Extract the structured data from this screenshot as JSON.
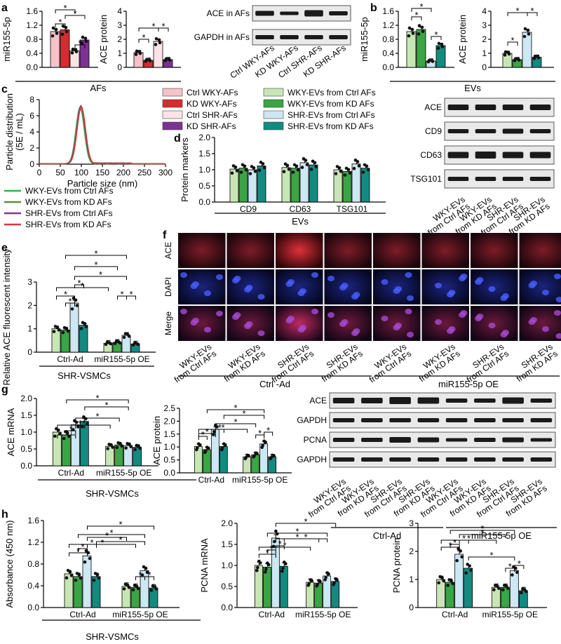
{
  "colors": {
    "ctrl_wky": "#f4c2c8",
    "kd_wky": "#d62b30",
    "ctrl_shr": "#fbe3e6",
    "kd_shr": "#7c3291",
    "wky_ctrl_evs": "#c8e6b5",
    "wky_kd_evs": "#3aa545",
    "shr_ctrl_evs": "#cde7f3",
    "shr_kd_evs": "#138a80",
    "curve_wky_ctrl": "#2fb24a",
    "curve_wky_kd": "#5c8f3e",
    "curve_shr_ctrl": "#7a3a8f",
    "curve_shr_kd": "#d43a3a",
    "ace_red": "#b0121b",
    "dapi_blue": "#2233b8"
  },
  "panels": {
    "a": "a",
    "b": "b",
    "c": "c",
    "d": "d",
    "e": "e",
    "f": "f",
    "g": "g",
    "h": "h"
  },
  "star": "*",
  "legend_af": [
    "Ctrl WKY-AFs",
    "KD WKY-AFs",
    "Ctrl SHR-AFs",
    "KD SHR-AFs"
  ],
  "legend_ev": [
    "WKY-EVs from Ctrl AFs",
    "WKY-EVs from KD AFs",
    "SHR-EVs from Ctrl AFs",
    "SHR-EVs from KD AFs"
  ],
  "blot_a": {
    "rows": [
      "ACE in AFs",
      "GAPDH in AFs"
    ],
    "lanes": [
      "Ctrl WKY-AFs",
      "KD WKY-AFs",
      "Ctrl SHR-AFs",
      "KD SHR-AFs"
    ]
  },
  "blot_d": {
    "rows": [
      "ACE",
      "CD9",
      "CD63",
      "TSG101"
    ],
    "lanes": [
      "WKY-EVs from Ctrl AFs",
      "WKY-EVs from KD AFs",
      "SHR-EVs from Ctrl AFs",
      "SHR-EVs from KD AFs"
    ]
  },
  "blot_g": {
    "rows": [
      "ACE",
      "GAPDH",
      "PCNA",
      "GAPDH"
    ],
    "lanes": [
      "WKY-EVs from Ctrl AFs",
      "WKY-EVs from KD AFs",
      "SHR-EVs from Ctrl AFs",
      "SHR-EVs from KD AFs",
      "WKY-EVs from Ctrl AFs",
      "WKY-EVs from KD AFs",
      "SHR-EVs from Ctrl AFs",
      "SHR-EVs from KD AFs"
    ],
    "groups": [
      "Ctrl-Ad",
      "miR155-5p OE"
    ]
  },
  "micro_f": {
    "rows": [
      "ACE",
      "DAPI",
      "Merge"
    ],
    "columns": [
      "WKY-EVs from Ctrl AFs",
      "WKY-EVs from KD AFs",
      "SHR-EVs from Ctrl AFs",
      "SHR-EVs from KD AFs",
      "WKY-EVs from Ctrl AFs",
      "WKY-EVs from KD AFs",
      "SHR-EVs from Ctrl AFs",
      "SHR-EVs from KD AFs"
    ],
    "groups": [
      "Ctrl -Ad",
      "miR155-5p OE"
    ]
  },
  "chart_data": [
    {
      "id": "a1",
      "type": "bar",
      "ylabel": "miR155-5p",
      "ylim": [
        0,
        1.6
      ],
      "yticks": [
        "0.0",
        "0.4",
        "0.8",
        "1.2",
        "1.6"
      ],
      "values": [
        1.02,
        1.07,
        0.47,
        0.78
      ],
      "footer": "AFs",
      "colorset": "af"
    },
    {
      "id": "a2",
      "type": "bar",
      "ylabel": "ACE protein",
      "ylim": [
        0,
        4
      ],
      "yticks": [
        "0",
        "1",
        "2",
        "3",
        "4"
      ],
      "values": [
        1.05,
        0.5,
        1.85,
        0.55
      ],
      "colorset": "af"
    },
    {
      "id": "b1",
      "type": "bar",
      "ylabel": "miR155-5p",
      "ylim": [
        0,
        1.6
      ],
      "yticks": [
        "0.0",
        "0.4",
        "0.8",
        "1.2",
        "1.6"
      ],
      "values": [
        1.02,
        1.08,
        0.18,
        0.62
      ],
      "footer": "EVs",
      "colorset": "ev"
    },
    {
      "id": "b2",
      "type": "bar",
      "ylabel": "ACE protein",
      "ylim": [
        0,
        4
      ],
      "yticks": [
        "0",
        "1",
        "2",
        "3",
        "4"
      ],
      "values": [
        1.0,
        0.55,
        2.5,
        0.72
      ],
      "colorset": "ev"
    },
    {
      "id": "c",
      "type": "line",
      "xlabel": "Particle size (nm)",
      "ylabel": "Particle distribution (5E / mL)",
      "xlim": [
        0,
        300
      ],
      "ylim": [
        0,
        8
      ],
      "xticks": [
        "0",
        "50",
        "100",
        "150",
        "200",
        "250",
        "300"
      ],
      "yticks": [
        "0",
        "2",
        "4",
        "6",
        "8"
      ],
      "series": [
        {
          "name": "WKY-EVs from Ctrl AFs",
          "peak": 7.0
        },
        {
          "name": "WKY-EVs from KD AFs",
          "peak": 6.8
        },
        {
          "name": "SHR-EVs from Ctrl AFs",
          "peak": 7.2
        },
        {
          "name": "SHR-EVs from KD AFs",
          "peak": 7.1
        }
      ]
    },
    {
      "id": "d",
      "type": "bar",
      "ylabel": "Protein markers",
      "xlabel": "EVs",
      "ylim": [
        0,
        2.0
      ],
      "yticks": [
        "0.0",
        "0.5",
        "1.0",
        "1.5",
        "2.0"
      ],
      "categories": [
        "CD9",
        "CD63",
        "TSG101"
      ],
      "series": [
        [
          1.02,
          1.05,
          1.0,
          1.12
        ],
        [
          1.07,
          1.05,
          1.22,
          1.15
        ],
        [
          1.0,
          0.95,
          1.18,
          1.05
        ]
      ],
      "colorset": "ev"
    },
    {
      "id": "e",
      "type": "bar",
      "ylabel": "Relative ACE fluorescent intensity",
      "xlabel": "SHR-VSMCs",
      "ylim": [
        0,
        3
      ],
      "yticks": [
        "0",
        "1",
        "2",
        "3"
      ],
      "categories": [
        "Ctrl-Ad",
        "miR155-5p OE"
      ],
      "series": [
        [
          1.0,
          0.95,
          2.1,
          1.15
        ],
        [
          0.38,
          0.42,
          0.72,
          0.35
        ]
      ],
      "colorset": "ev"
    },
    {
      "id": "g1",
      "type": "bar",
      "ylabel": "ACE mRNA",
      "xlabel": "SHR-VSMCs",
      "ylim": [
        0,
        2.0
      ],
      "yticks": [
        "0.0",
        "0.5",
        "1.0",
        "1.5",
        "2.0"
      ],
      "categories": [
        "Ctrl-Ad",
        "miR155-5p OE"
      ],
      "series": [
        [
          1.0,
          0.92,
          1.22,
          1.32
        ],
        [
          0.58,
          0.62,
          0.6,
          0.55
        ]
      ],
      "colorset": "ev"
    },
    {
      "id": "g2",
      "type": "bar",
      "ylabel": "ACE protein",
      "ylim": [
        0,
        2.5
      ],
      "yticks": [
        "0.0",
        "0.5",
        "1.0",
        "1.5",
        "2.0",
        "2.5"
      ],
      "categories": [
        "Ctrl-Ad",
        "miR155-5p OE"
      ],
      "series": [
        [
          1.02,
          0.9,
          1.68,
          1.02
        ],
        [
          0.62,
          0.7,
          1.12,
          0.62
        ]
      ],
      "colorset": "ev"
    },
    {
      "id": "h1",
      "type": "bar",
      "ylabel": "Absorbance (450 nm)",
      "xlabel": "SHR-VSMCs",
      "ylim": [
        0,
        1.6
      ],
      "yticks": [
        "0.0",
        "0.4",
        "0.8",
        "1.2",
        "1.6"
      ],
      "categories": [
        "Ctrl-Ad",
        "miR155-5p OE"
      ],
      "series": [
        [
          0.62,
          0.57,
          0.95,
          0.57
        ],
        [
          0.39,
          0.37,
          0.68,
          0.36
        ]
      ],
      "colorset": "ev"
    },
    {
      "id": "h2",
      "type": "bar",
      "ylabel": "PCNA mRNA",
      "ylim": [
        0,
        2.0
      ],
      "yticks": [
        "0.0",
        "0.5",
        "1.0",
        "1.5",
        "2.0"
      ],
      "categories": [
        "Ctrl-Ad",
        "miR155-5p OE"
      ],
      "series": [
        [
          1.0,
          0.96,
          1.65,
          0.98
        ],
        [
          0.6,
          0.58,
          0.75,
          0.62
        ]
      ],
      "colorset": "ev"
    },
    {
      "id": "h3",
      "type": "bar",
      "ylabel": "PCNA protein",
      "ylim": [
        0,
        3
      ],
      "yticks": [
        "0",
        "1",
        "2",
        "3"
      ],
      "categories": [
        "Ctrl-Ad",
        "miR155-5p OE"
      ],
      "series": [
        [
          1.0,
          0.9,
          1.9,
          1.4
        ],
        [
          0.72,
          0.72,
          1.32,
          0.6
        ]
      ],
      "colorset": "ev"
    }
  ]
}
